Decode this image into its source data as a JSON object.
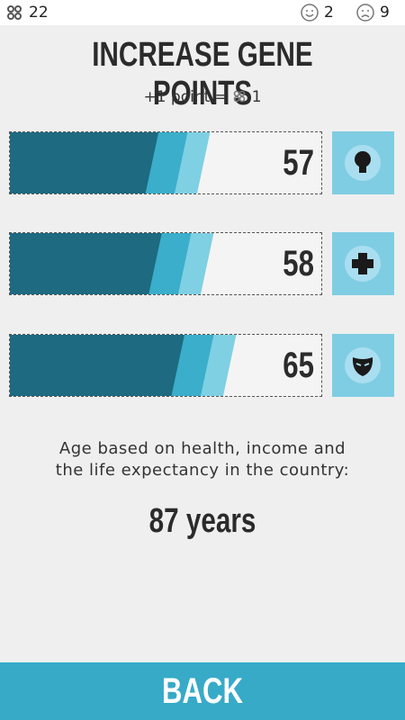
{
  "status": {
    "gene_points": "22",
    "happy": "2",
    "sad": "9"
  },
  "header": {
    "title": "INCREASE GENE POINTS",
    "rate_prefix": "+1 point =",
    "rate_value": "1"
  },
  "stats": [
    {
      "value": 57
    },
    {
      "value": 58
    },
    {
      "value": 65
    }
  ],
  "description": "Age based on health, income and the life expectancy in the country:",
  "age": "87 years",
  "back_button": "BACK"
}
